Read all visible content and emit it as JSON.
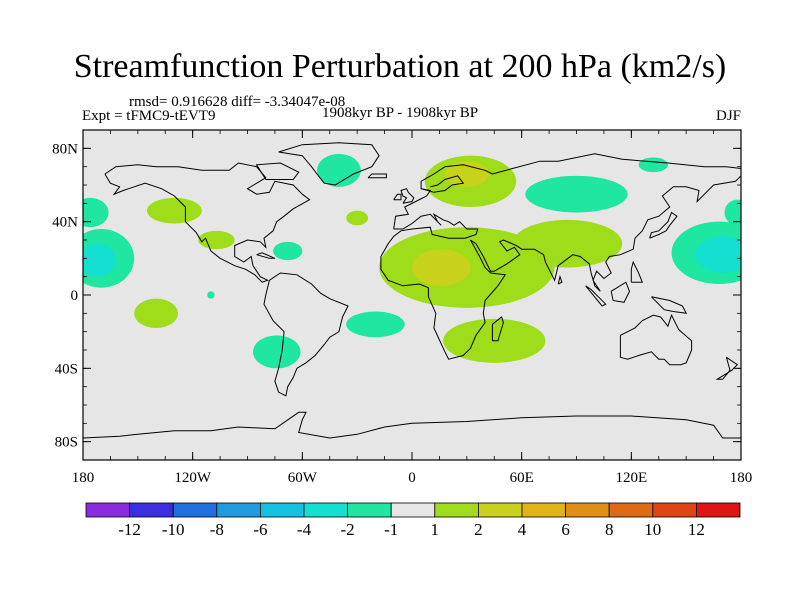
{
  "title": "Streamfunction Perturbation at 200 hPa (km2/s)",
  "stats": "rmsd= 0.916628 diff= -3.34047e-08",
  "experiment": "Expt = tFMC9-tEVT9",
  "period": "1908kyr BP - 1908kyr BP",
  "season": "DJF",
  "axes": {
    "lat_ticks": [
      {
        "label": "80N",
        "lat": 80
      },
      {
        "label": "40N",
        "lat": 40
      },
      {
        "label": "0",
        "lat": 0
      },
      {
        "label": "40S",
        "lat": -40
      },
      {
        "label": "80S",
        "lat": -80
      }
    ],
    "lon_ticks": [
      {
        "label": "180",
        "lon": -180
      },
      {
        "label": "120W",
        "lon": -120
      },
      {
        "label": "60W",
        "lon": -60
      },
      {
        "label": "0",
        "lon": 0
      },
      {
        "label": "60E",
        "lon": 60
      },
      {
        "label": "120E",
        "lon": 120
      },
      {
        "label": "180",
        "lon": 180
      }
    ]
  },
  "colorbar": {
    "colors": [
      "#8a2be2",
      "#3a2ee0",
      "#1f6fe0",
      "#1f9be0",
      "#13c1e0",
      "#13e0d0",
      "#1fe6a0",
      "#e6e6e6",
      "#9fdd1a",
      "#c8d21a",
      "#e0b414",
      "#e08f14",
      "#e06a14",
      "#e04414",
      "#e01414"
    ],
    "labels": [
      "-12",
      "-10",
      "-8",
      "-6",
      "-4",
      "-2",
      "-1",
      "1",
      "2",
      "4",
      "6",
      "8",
      "10",
      "12"
    ]
  },
  "chart_data": {
    "type": "heatmap",
    "title": "Streamfunction Perturbation at 200 hPa (km2/s)",
    "variable": "streamfunction perturbation",
    "level": "200 hPa",
    "units": "km2/s",
    "season": "DJF",
    "lon_range": [
      -180,
      180
    ],
    "lat_range": [
      -90,
      90
    ],
    "levels": [
      -12,
      -10,
      -8,
      -6,
      -4,
      -2,
      -1,
      1,
      2,
      4,
      6,
      8,
      10,
      12
    ],
    "background": "#e6e6e6",
    "regions": [
      {
        "name": "north-pacific-west-low",
        "lon": 168,
        "lat": 23,
        "rlon": 26,
        "rlat": 17,
        "value": -2,
        "color": "#1fe6a0"
      },
      {
        "name": "north-pacific-west-low-core",
        "lon": 170,
        "lat": 22,
        "rlon": 15,
        "rlat": 10,
        "value": -4,
        "color": "#13e0d0"
      },
      {
        "name": "north-pacific-east-low",
        "lon": -170,
        "lat": 20,
        "rlon": 18,
        "rlat": 16,
        "value": -2,
        "color": "#1fe6a0"
      },
      {
        "name": "north-pacific-east-low-core",
        "lon": -172,
        "lat": 19,
        "rlon": 10,
        "rlat": 9,
        "value": -4,
        "color": "#13e0d0"
      },
      {
        "name": "gulf-alaska-low",
        "lon": -176,
        "lat": 45,
        "rlon": 10,
        "rlat": 8,
        "value": -1,
        "color": "#1fe6a0"
      },
      {
        "name": "west-pacific-north-low",
        "lon": 178,
        "lat": 45,
        "rlon": 7,
        "rlat": 7,
        "value": -1,
        "color": "#1fe6a0"
      },
      {
        "name": "northeast-pacific-high",
        "lon": -130,
        "lat": 46,
        "rlon": 15,
        "rlat": 7,
        "value": 1,
        "color": "#9fdd1a"
      },
      {
        "name": "us-southwest-high",
        "lon": -107,
        "lat": 30,
        "rlon": 10,
        "rlat": 5,
        "value": 1,
        "color": "#9fdd1a"
      },
      {
        "name": "caribbean-low",
        "lon": -68,
        "lat": 24,
        "rlon": 8,
        "rlat": 5,
        "value": -1,
        "color": "#1fe6a0"
      },
      {
        "name": "greenland-low",
        "lon": -40,
        "lat": 68,
        "rlon": 12,
        "rlat": 9,
        "value": -1,
        "color": "#1fe6a0"
      },
      {
        "name": "north-atlantic-low",
        "lon": -30,
        "lat": 42,
        "rlon": 6,
        "rlat": 4,
        "value": 1,
        "color": "#9fdd1a"
      },
      {
        "name": "europe-scandinavia-high",
        "lon": 32,
        "lat": 62,
        "rlon": 25,
        "rlat": 14,
        "value": 2,
        "color": "#9fdd1a"
      },
      {
        "name": "scandinavia-high-core",
        "lon": 30,
        "lat": 66,
        "rlon": 12,
        "rlat": 7,
        "value": 4,
        "color": "#c8d21a"
      },
      {
        "name": "siberia-low",
        "lon": 90,
        "lat": 55,
        "rlon": 28,
        "rlat": 10,
        "value": -1,
        "color": "#1fe6a0"
      },
      {
        "name": "east-siberia-low",
        "lon": 132,
        "lat": 71,
        "rlon": 8,
        "rlat": 4,
        "value": -1,
        "color": "#1fe6a0"
      },
      {
        "name": "africa-asia-high",
        "lon": 30,
        "lat": 15,
        "rlon": 48,
        "rlat": 22,
        "value": 2,
        "color": "#9fdd1a"
      },
      {
        "name": "asia-high",
        "lon": 85,
        "lat": 28,
        "rlon": 30,
        "rlat": 13,
        "value": 2,
        "color": "#9fdd1a"
      },
      {
        "name": "sahara-high-core",
        "lon": 16,
        "lat": 15,
        "rlon": 16,
        "rlat": 10,
        "value": 4,
        "color": "#c8d21a"
      },
      {
        "name": "south-africa-high",
        "lon": 45,
        "lat": -25,
        "rlon": 28,
        "rlat": 12,
        "value": 1,
        "color": "#9fdd1a"
      },
      {
        "name": "east-pacific-south-high",
        "lon": -140,
        "lat": -10,
        "rlon": 12,
        "rlat": 8,
        "value": 1,
        "color": "#9fdd1a"
      },
      {
        "name": "small-pacific-low",
        "lon": -110,
        "lat": 0,
        "rlon": 2,
        "rlat": 2,
        "value": -1,
        "color": "#1fe6a0"
      },
      {
        "name": "south-atlantic-low",
        "lon": -20,
        "lat": -16,
        "rlon": 16,
        "rlat": 7,
        "value": -1,
        "color": "#1fe6a0"
      },
      {
        "name": "south-america-low",
        "lon": -74,
        "lat": -31,
        "rlon": 13,
        "rlat": 9,
        "value": -1,
        "color": "#1fe6a0"
      }
    ]
  }
}
